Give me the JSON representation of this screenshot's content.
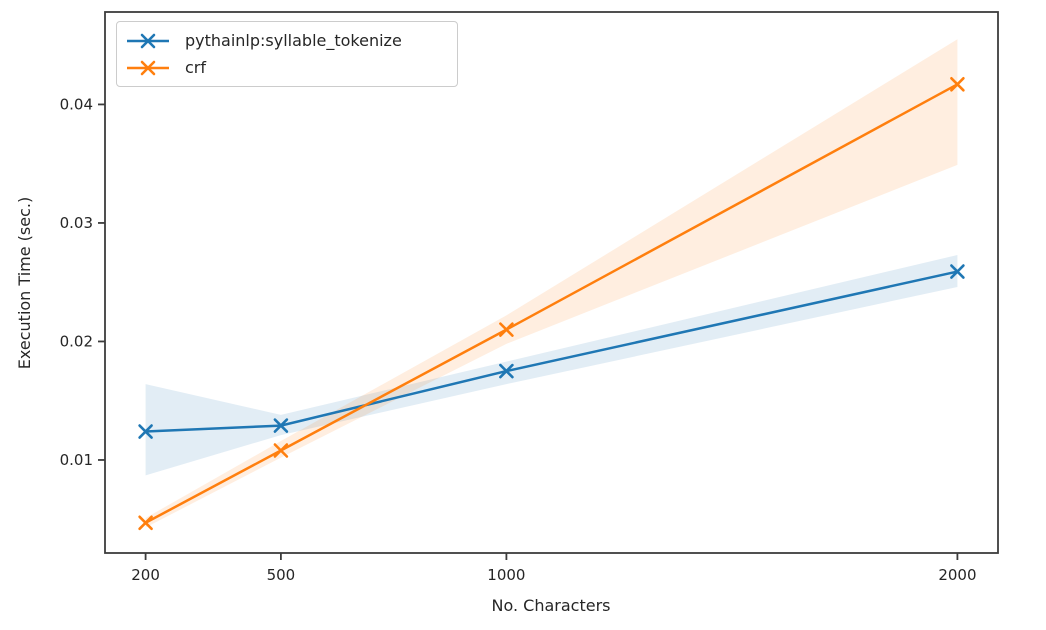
{
  "figure": {
    "background": "#ffffff",
    "text_color": "#262626",
    "spine_color": "#3c3c3c"
  },
  "chart_data": {
    "type": "line",
    "title": "",
    "xlabel": "No. Characters",
    "ylabel": "Execution Time (sec.)",
    "x": [
      200,
      500,
      1000,
      2000
    ],
    "xtick_labels": [
      "200",
      "500",
      "1000",
      "2000"
    ],
    "ytick_values": [
      0.01,
      0.02,
      0.03,
      0.04
    ],
    "ytick_labels": [
      "0.01",
      "0.02",
      "0.03",
      "0.04"
    ],
    "xlim": [
      110,
      2090
    ],
    "ylim": [
      0.00215,
      0.0478
    ],
    "grid": false,
    "legend_position": "upper left",
    "band_opacity": 0.13,
    "series": [
      {
        "name": "pythainlp:syllable_tokenize",
        "color": "#1f77b4",
        "marker": "x",
        "values": [
          0.0124,
          0.0129,
          0.0175,
          0.0259
        ],
        "band_lower": [
          0.0087,
          0.0121,
          0.0164,
          0.0246
        ],
        "band_upper": [
          0.0164,
          0.0138,
          0.0183,
          0.0273
        ]
      },
      {
        "name": "crf",
        "color": "#ff7f0e",
        "marker": "x",
        "values": [
          0.0047,
          0.0108,
          0.021,
          0.0417
        ],
        "band_lower": [
          0.0043,
          0.0102,
          0.0198,
          0.0349
        ],
        "band_upper": [
          0.0051,
          0.0116,
          0.0222,
          0.0455
        ]
      }
    ]
  }
}
